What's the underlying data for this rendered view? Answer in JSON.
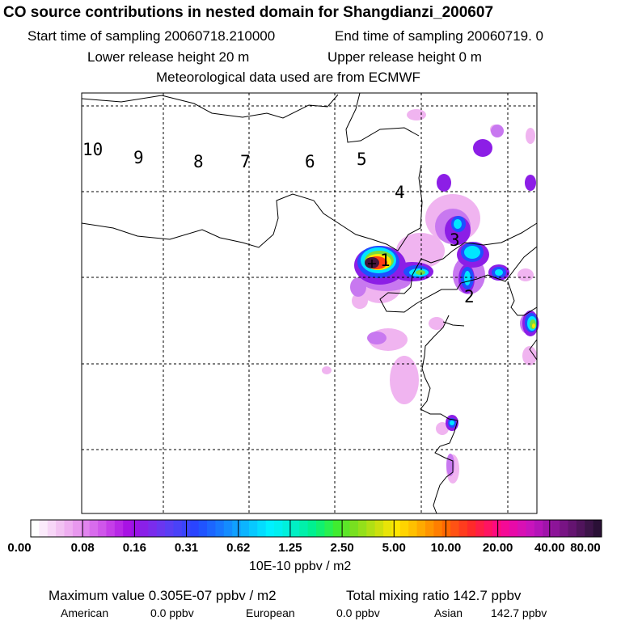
{
  "title": "CO  source contributions in nested domain for Shangdianzi_200607",
  "sampling": {
    "start": "Start time of sampling 20060718.210000",
    "end": "End time of sampling 20060719.     0"
  },
  "release": {
    "lower": "Lower release height   20 m",
    "upper": "Upper release height    0 m"
  },
  "met": "Meteorological data used are from ECMWF",
  "map": {
    "trajectory_labels": [
      "10",
      "9",
      "8",
      "7",
      "6",
      "5",
      "4",
      "3",
      "2",
      "1"
    ],
    "colors": {
      "frame": "#000000",
      "coast": "#000000",
      "grid": "#000000",
      "light_pink": "#f0b4f0",
      "violet": "#c878f0",
      "purple": "#8c1ee6",
      "blue": "#1e50ff",
      "cyan": "#00e6ff",
      "green": "#78dc3c",
      "yellow": "#ffe600",
      "red": "#ff3c14",
      "dark_purple": "#46143c"
    }
  },
  "colorbar": {
    "tick_labels": [
      "0.00",
      "0.08",
      "0.16",
      "0.31",
      "0.62",
      "1.25",
      "2.50",
      "5.00",
      "10.00",
      "20.00",
      "40.00",
      "80.00"
    ],
    "colors": [
      "#ffffff",
      "#fbeafb",
      "#f7d6f7",
      "#f2c2f2",
      "#eeaef0",
      "#e898ee",
      "#e184ee",
      "#d86cec",
      "#cf56ea",
      "#c53ee8",
      "#b828e6",
      "#a812e4",
      "#9a14e6",
      "#8a20e8",
      "#7a2cec",
      "#6a36f0",
      "#5a3ef4",
      "#4a42f8",
      "#3a44fc",
      "#2a44ff",
      "#2054ff",
      "#1c66ff",
      "#1878ff",
      "#148cff",
      "#10a0ff",
      "#0cb4ff",
      "#08c8ff",
      "#04dcff",
      "#00f0ff",
      "#00f0f0",
      "#00f0dc",
      "#00f0c4",
      "#00f0aa",
      "#00f090",
      "#10f070",
      "#28f050",
      "#40ec30",
      "#5ce628",
      "#78e020",
      "#94e01a",
      "#b0e014",
      "#cce00e",
      "#e8e408",
      "#ffe600",
      "#ffd400",
      "#ffc000",
      "#ffaa00",
      "#ff9400",
      "#ff7e00",
      "#ff6800",
      "#ff5214",
      "#ff3c1e",
      "#ff2a2a",
      "#ff1e46",
      "#ff1462",
      "#ff0a7e",
      "#f50a96",
      "#e80aa8",
      "#d810b4",
      "#c814bc",
      "#b414b8",
      "#a014aa",
      "#8c1498",
      "#781484",
      "#641470",
      "#50145c",
      "#3c1448",
      "#2a1036"
    ],
    "units": "10E-10 ppbv / m2"
  },
  "summary": {
    "max_label": "Maximum value  0.305E-07 ppbv / m2",
    "total_label": "Total mixing ratio      142.7 ppbv",
    "regions": [
      {
        "name": "American",
        "value": "0.0 ppbv"
      },
      {
        "name": "European",
        "value": "0.0 ppbv"
      },
      {
        "name": "Asian",
        "value": "142.7 ppbv"
      }
    ]
  }
}
